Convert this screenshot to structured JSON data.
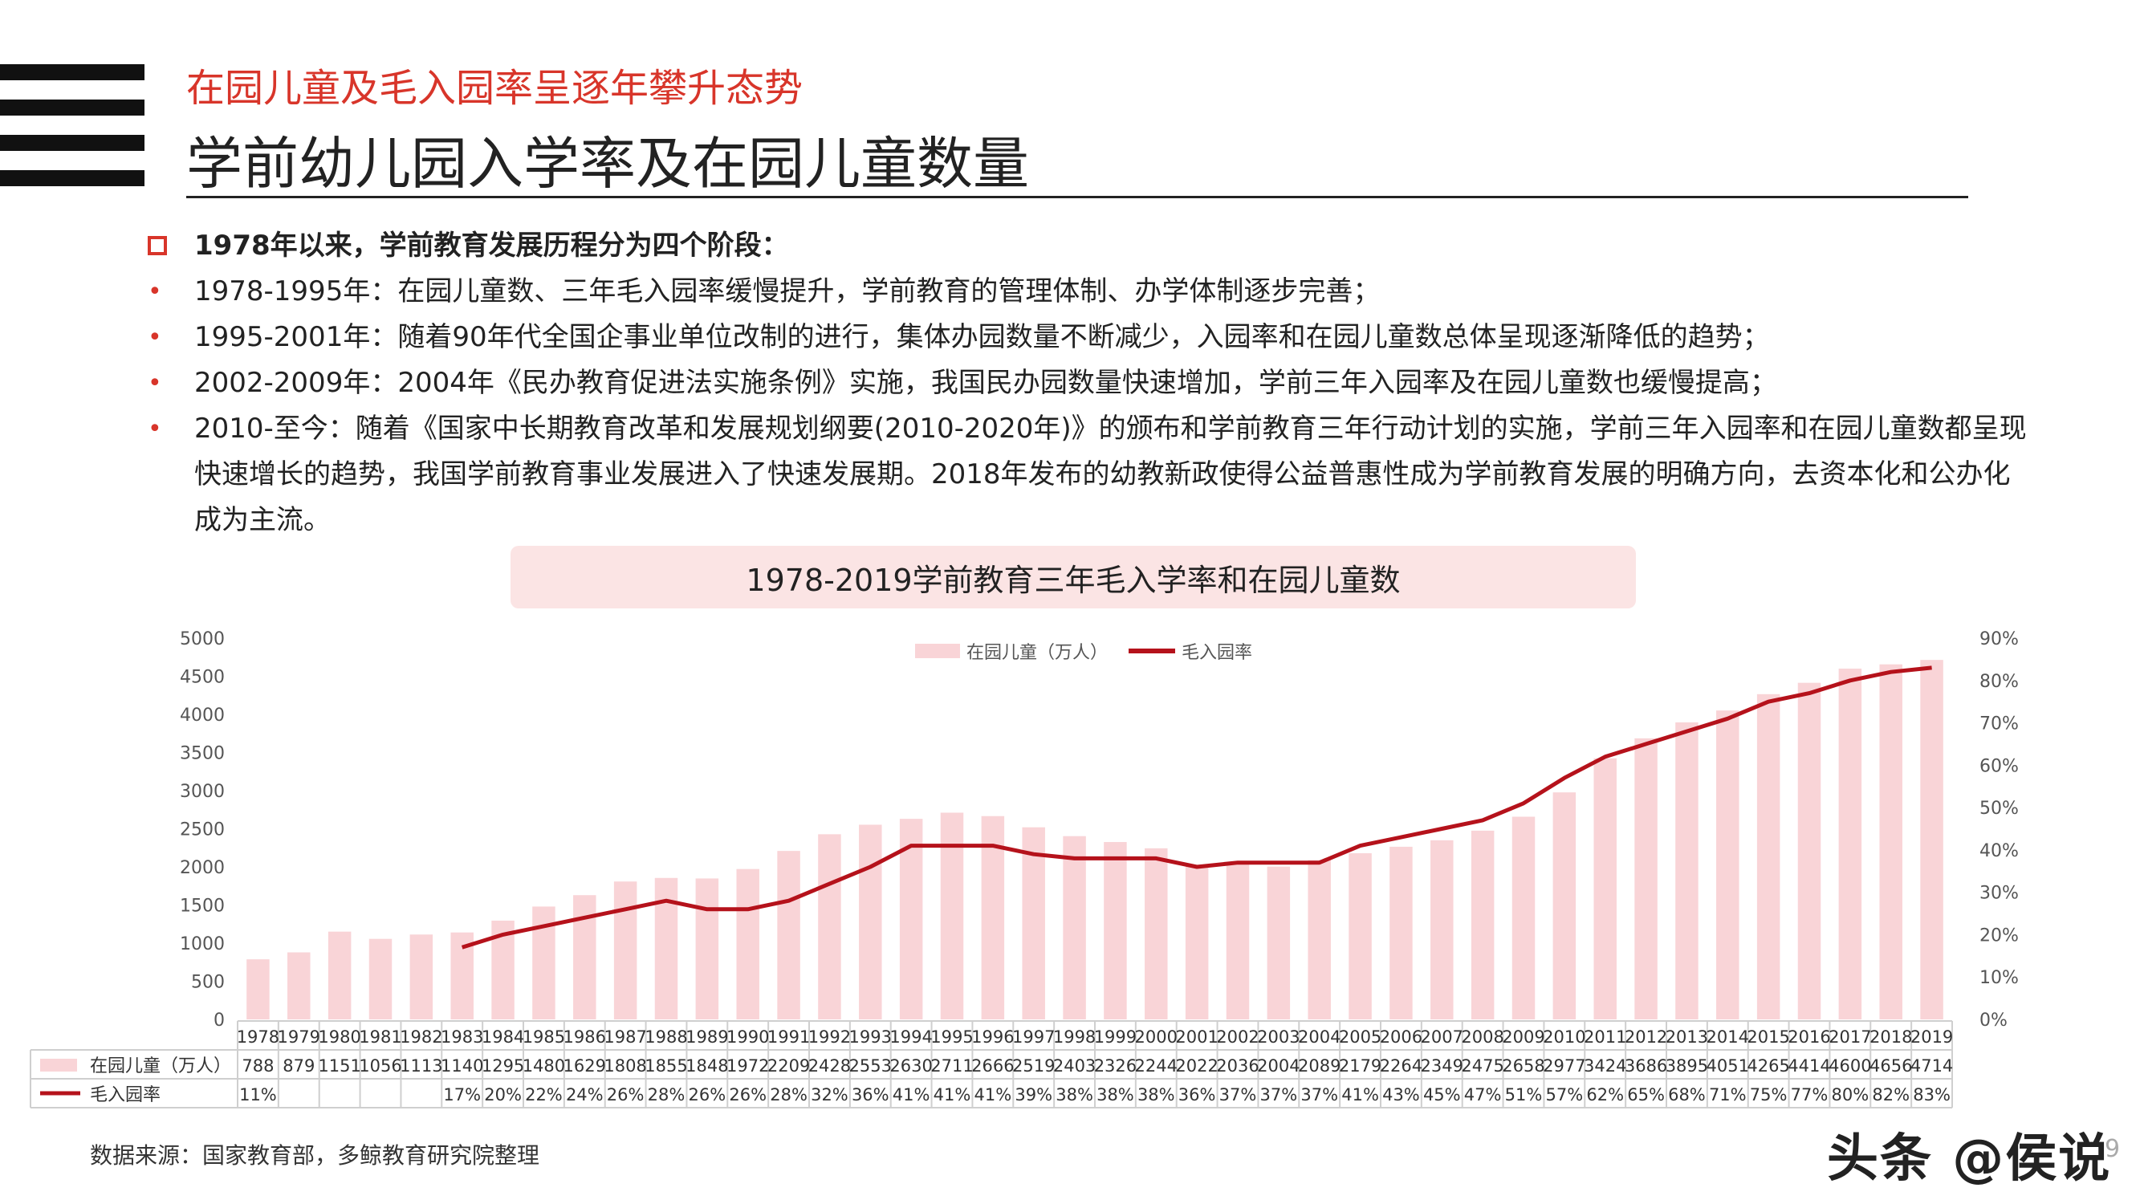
{
  "header": {
    "subtitle": "在园儿童及毛入园率呈逐年攀升态势",
    "title": "学前幼儿园入学率及在园儿童数量"
  },
  "bullets": {
    "heading": "1978年以来，学前教育发展历程分为四个阶段：",
    "items": [
      "1978-1995年：在园儿童数、三年毛入园率缓慢提升，学前教育的管理体制、办学体制逐步完善；",
      "1995-2001年：随着90年代全国企事业单位改制的进行，集体办园数量不断减少，入园率和在园儿童数总体呈现逐渐降低的趋势；",
      "2002-2009年：2004年《民办教育促进法实施条例》实施，我国民办园数量快速增加，学前三年入园率及在园儿童数也缓慢提高；",
      "2010-至今：随着《国家中长期教育改革和发展规划纲要(2010-2020年)》的颁布和学前教育三年行动计划的实施，学前三年入园率和在园儿童数都呈现快速增长的趋势，我国学前教育事业发展进入了快速发展期。2018年发布的幼教新政使得公益普惠性成为学前教育发展的明确方向，去资本化和公办化成为主流。"
    ]
  },
  "chart_data": {
    "type": "bar",
    "title": "1978-2019学前教育三年毛入学率和在园儿童数",
    "categories": [
      "1978",
      "1979",
      "1980",
      "1981",
      "1982",
      "1983",
      "1984",
      "1985",
      "1986",
      "1987",
      "1988",
      "1989",
      "1990",
      "1991",
      "1992",
      "1993",
      "1994",
      "1995",
      "1996",
      "1997",
      "1998",
      "1999",
      "2000",
      "2001",
      "2002",
      "2003",
      "2004",
      "2005",
      "2006",
      "2007",
      "2008",
      "2009",
      "2010",
      "2011",
      "2012",
      "2013",
      "2014",
      "2015",
      "2016",
      "2017",
      "2018",
      "2019"
    ],
    "series": [
      {
        "name": "在园儿童（万人）",
        "type": "bar",
        "axis": "left",
        "color": "#f9d4d7",
        "values": [
          788,
          879,
          1151,
          1056,
          1113,
          1140,
          1295,
          1480,
          1629,
          1808,
          1855,
          1848,
          1972,
          2209,
          2428,
          2553,
          2630,
          2711,
          2666,
          2519,
          2403,
          2326,
          2244,
          2022,
          2036,
          2004,
          2089,
          2179,
          2264,
          2349,
          2475,
          2658,
          2977,
          3424,
          3686,
          3895,
          4051,
          4265,
          4414,
          4600,
          4656,
          4714
        ]
      },
      {
        "name": "毛入园率",
        "type": "line",
        "axis": "right",
        "color": "#b5121b",
        "values": [
          11,
          null,
          null,
          null,
          null,
          17,
          20,
          22,
          24,
          26,
          28,
          26,
          26,
          28,
          32,
          36,
          41,
          41,
          41,
          39,
          38,
          38,
          38,
          36,
          37,
          37,
          37,
          41,
          43,
          45,
          47,
          51,
          57,
          62,
          65,
          68,
          71,
          75,
          77,
          80,
          82,
          83
        ]
      }
    ],
    "left_axis": {
      "min": 0,
      "max": 5000,
      "step": 500,
      "ticks": [
        "0",
        "500",
        "1000",
        "1500",
        "2000",
        "2500",
        "3000",
        "3500",
        "4000",
        "4500",
        "5000"
      ]
    },
    "right_axis": {
      "min": 0,
      "max": 90,
      "step": 10,
      "ticks": [
        "0%",
        "10%",
        "20%",
        "30%",
        "40%",
        "50%",
        "60%",
        "70%",
        "80%",
        "90%"
      ]
    },
    "legend_position": "top-center",
    "data_table": true
  },
  "footer": {
    "source": "数据来源：国家教育部，多鲸教育研究院整理",
    "watermark": "头条 @侯说",
    "page": "9"
  }
}
